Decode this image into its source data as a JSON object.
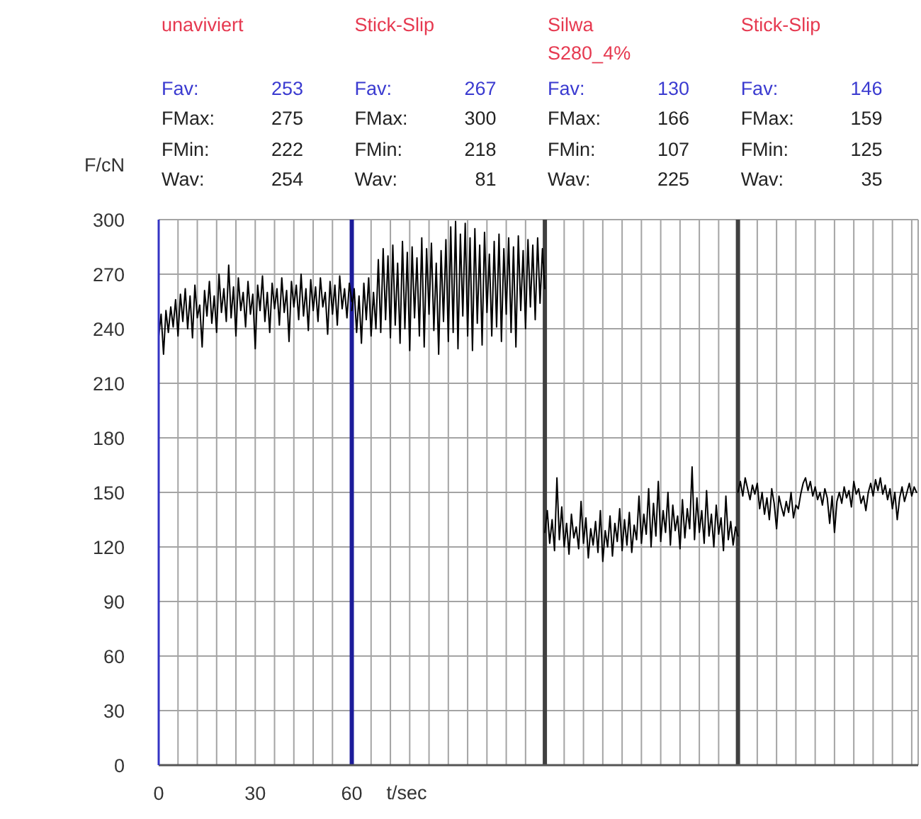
{
  "chart_data": {
    "type": "line",
    "xlabel": "t/sec",
    "ylabel": "F/cN",
    "annotations": [
      "unaviviert",
      "Stick-Slip",
      "Silwa S280_4%",
      "Stick-Slip",
      "Fav: 253",
      "Fav: 267",
      "Fav: 130",
      "Fav: 146",
      "FMax: 275",
      "FMax: 300",
      "FMax: 166",
      "FMax: 159",
      "FMin: 222",
      "FMin: 218",
      "FMin: 107",
      "FMin: 125",
      "Wav: 254",
      "Wav: 81",
      "Wav: 225",
      "Wav: 35"
    ],
    "xlim": [
      0,
      236
    ],
    "xticks": [
      0,
      {
        "value": 6,
        "label": null
      },
      {
        "value": 12,
        "label": null
      },
      {
        "value": 18,
        "label": null
      },
      {
        "value": 24,
        "label": null
      },
      30,
      {
        "value": 36,
        "label": null
      },
      {
        "value": 42,
        "label": null
      },
      {
        "value": 48,
        "label": null
      },
      {
        "value": 54,
        "label": null
      },
      60,
      {
        "value": 66,
        "label": null
      },
      {
        "value": 72,
        "label": null
      },
      {
        "value": 78,
        "label": null
      },
      {
        "value": 84,
        "label": null
      },
      {
        "value": 90,
        "label": null
      },
      {
        "value": 96,
        "label": null
      },
      {
        "value": 102,
        "label": null
      },
      {
        "value": 108,
        "label": null
      },
      {
        "value": 114,
        "label": null
      },
      {
        "value": 126,
        "label": null
      },
      {
        "value": 132,
        "label": null
      },
      {
        "value": 138,
        "label": null
      },
      {
        "value": 144,
        "label": null
      },
      {
        "value": 150,
        "label": null
      },
      {
        "value": 156,
        "label": null
      },
      {
        "value": 162,
        "label": null
      },
      {
        "value": 168,
        "label": null
      },
      {
        "value": 174,
        "label": null
      },
      {
        "value": 186,
        "label": null
      },
      {
        "value": 192,
        "label": null
      },
      {
        "value": 198,
        "label": null
      },
      {
        "value": 204,
        "label": null
      },
      {
        "value": 210,
        "label": null
      },
      {
        "value": 216,
        "label": null
      },
      {
        "value": 222,
        "label": null
      },
      {
        "value": 228,
        "label": null
      },
      {
        "value": 234,
        "label": null
      }
    ],
    "ylim": [
      0,
      300
    ],
    "yticks": [
      0,
      30,
      60,
      90,
      120,
      150,
      180,
      210,
      240,
      270,
      300
    ],
    "grid": true,
    "ref_lines": [
      {
        "axis": "x",
        "value": 60,
        "color": "#1c1c9a"
      },
      {
        "axis": "x",
        "value": 120,
        "color": "#404040"
      },
      {
        "axis": "x",
        "value": 180,
        "color": "#404040"
      }
    ],
    "series": [
      {
        "color": "#000000",
        "x": [
          0,
          0.75,
          1.5,
          2.25,
          3,
          3.75,
          4.5,
          5.25,
          6,
          6.75,
          7.5,
          8.25,
          9,
          9.75,
          10.5,
          11.25,
          12,
          12.75,
          13.5,
          14.25,
          15,
          15.75,
          16.5,
          17.25,
          18,
          18.75,
          19.5,
          20.25,
          21,
          21.75,
          22.5,
          23.25,
          24,
          24.75,
          25.5,
          26.25,
          27,
          27.75,
          28.5,
          29.25,
          30,
          30.75,
          31.5,
          32.25,
          33,
          33.75,
          34.5,
          35.25,
          36,
          36.75,
          37.5,
          38.25,
          39,
          39.75,
          40.5,
          41.25,
          42,
          42.75,
          43.5,
          44.25,
          45,
          45.75,
          46.5,
          47.25,
          48,
          48.75,
          49.5,
          50.25,
          51,
          51.75,
          52.5,
          53.25,
          54,
          54.75,
          55.5,
          56.25,
          57,
          57.75,
          58.5,
          59.25,
          60
        ],
        "values": [
          236,
          248,
          226,
          250,
          238,
          252,
          241,
          256,
          236,
          259,
          244,
          262,
          240,
          258,
          235,
          264,
          246,
          253,
          230,
          261,
          247,
          266,
          243,
          258,
          238,
          270,
          249,
          262,
          244,
          275,
          246,
          263,
          236,
          268,
          250,
          260,
          241,
          266,
          248,
          259,
          229,
          264,
          250,
          269,
          244,
          260,
          238,
          265,
          251,
          262,
          242,
          268,
          249,
          261,
          233,
          266,
          252,
          264,
          245,
          270,
          247,
          262,
          239,
          267,
          250,
          263,
          244,
          268,
          252,
          260,
          237,
          266,
          248,
          264,
          242,
          269,
          251,
          262,
          246,
          265,
          255
        ]
      },
      {
        "color": "#000000",
        "x": [
          60,
          60.75,
          61.5,
          62.25,
          63,
          63.75,
          64.5,
          65.25,
          66,
          66.75,
          67.5,
          68.25,
          69,
          69.75,
          70.5,
          71.25,
          72,
          72.75,
          73.5,
          74.25,
          75,
          75.75,
          76.5,
          77.25,
          78,
          78.75,
          79.5,
          80.25,
          81,
          81.75,
          82.5,
          83.25,
          84,
          84.75,
          85.5,
          86.25,
          87,
          87.75,
          88.5,
          89.25,
          90,
          90.75,
          91.5,
          92.25,
          93,
          93.75,
          94.5,
          95.25,
          96,
          96.75,
          97.5,
          98.25,
          99,
          99.75,
          100.5,
          101.25,
          102,
          102.75,
          103.5,
          104.25,
          105,
          105.75,
          106.5,
          107.25,
          108,
          108.75,
          109.5,
          110.25,
          111,
          111.75,
          112.5,
          113.25,
          114,
          114.75,
          115.5,
          116.25,
          117,
          117.75,
          118.5,
          119.25,
          120
        ],
        "values": [
          250,
          262,
          238,
          258,
          232,
          265,
          245,
          268,
          236,
          260,
          240,
          278,
          238,
          284,
          245,
          280,
          235,
          286,
          242,
          276,
          232,
          288,
          240,
          282,
          228,
          285,
          246,
          279,
          236,
          290,
          230,
          284,
          248,
          287,
          239,
          276,
          226,
          283,
          244,
          289,
          233,
          296,
          238,
          299,
          229,
          292,
          247,
          298,
          236,
          290,
          228,
          295,
          243,
          286,
          231,
          293,
          249,
          281,
          236,
          288,
          241,
          292,
          233,
          284,
          248,
          290,
          238,
          285,
          230,
          291,
          250,
          283,
          240,
          289,
          252,
          286,
          245,
          290,
          254,
          284,
          262
        ]
      },
      {
        "color": "#000000",
        "x": [
          120,
          120.75,
          121.5,
          122.25,
          123,
          123.75,
          124.5,
          125.25,
          126,
          126.75,
          127.5,
          128.25,
          129,
          129.75,
          130.5,
          131.25,
          132,
          132.75,
          133.5,
          134.25,
          135,
          135.75,
          136.5,
          137.25,
          138,
          138.75,
          139.5,
          140.25,
          141,
          141.75,
          142.5,
          143.25,
          144,
          144.75,
          145.5,
          146.25,
          147,
          147.75,
          148.5,
          149.25,
          150,
          150.75,
          151.5,
          152.25,
          153,
          153.75,
          154.5,
          155.25,
          156,
          156.75,
          157.5,
          158.25,
          159,
          159.75,
          160.5,
          161.25,
          162,
          162.75,
          163.5,
          164.25,
          165,
          165.75,
          166.5,
          167.25,
          168,
          168.75,
          169.5,
          170.25,
          171,
          171.75,
          172.5,
          173.25,
          174,
          174.75,
          175.5,
          176.25,
          177,
          177.75,
          178.5,
          179.25,
          180
        ],
        "values": [
          128,
          140,
          122,
          135,
          118,
          158,
          124,
          142,
          120,
          133,
          116,
          138,
          125,
          131,
          119,
          145,
          122,
          136,
          114,
          130,
          121,
          134,
          117,
          140,
          112,
          129,
          120,
          137,
          115,
          133,
          123,
          141,
          118,
          135,
          121,
          139,
          117,
          132,
          124,
          148,
          122,
          138,
          127,
          152,
          120,
          144,
          126,
          156,
          123,
          140,
          128,
          150,
          121,
          143,
          129,
          137,
          119,
          146,
          125,
          141,
          130,
          164,
          124,
          147,
          128,
          140,
          122,
          151,
          126,
          138,
          120,
          143,
          127,
          136,
          118,
          148,
          124,
          134,
          121,
          131,
          126
        ]
      },
      {
        "color": "#000000",
        "x": [
          180,
          180.75,
          181.5,
          182.25,
          183,
          183.75,
          184.5,
          185.25,
          186,
          186.75,
          187.5,
          188.25,
          189,
          189.75,
          190.5,
          191.25,
          192,
          192.75,
          193.5,
          194.25,
          195,
          195.75,
          196.5,
          197.25,
          198,
          198.75,
          199.5,
          200.25,
          201,
          201.75,
          202.5,
          203.25,
          204,
          204.75,
          205.5,
          206.25,
          207,
          207.75,
          208.5,
          209.25,
          210,
          210.75,
          211.5,
          212.25,
          213,
          213.75,
          214.5,
          215.25,
          216,
          216.75,
          217.5,
          218.25,
          219,
          219.75,
          220.5,
          221.25,
          222,
          222.75,
          223.5,
          224.25,
          225,
          225.75,
          226.5,
          227.25,
          228,
          228.75,
          229.5,
          230.25,
          231,
          231.75,
          232.5,
          233.25,
          234,
          234.75,
          235.5
        ],
        "values": [
          150,
          156,
          148,
          158,
          152,
          146,
          154,
          149,
          155,
          141,
          150,
          138,
          147,
          135,
          152,
          144,
          130,
          148,
          142,
          137,
          145,
          139,
          150,
          136,
          143,
          141,
          149,
          155,
          158,
          151,
          156,
          148,
          153,
          146,
          150,
          143,
          152,
          147,
          133,
          148,
          128,
          145,
          150,
          144,
          153,
          147,
          151,
          142,
          156,
          149,
          152,
          144,
          148,
          140,
          150,
          155,
          148,
          157,
          151,
          158,
          149,
          154,
          146,
          152,
          141,
          150,
          135,
          147,
          153,
          145,
          150,
          155,
          148,
          153,
          150
        ]
      }
    ]
  }
}
